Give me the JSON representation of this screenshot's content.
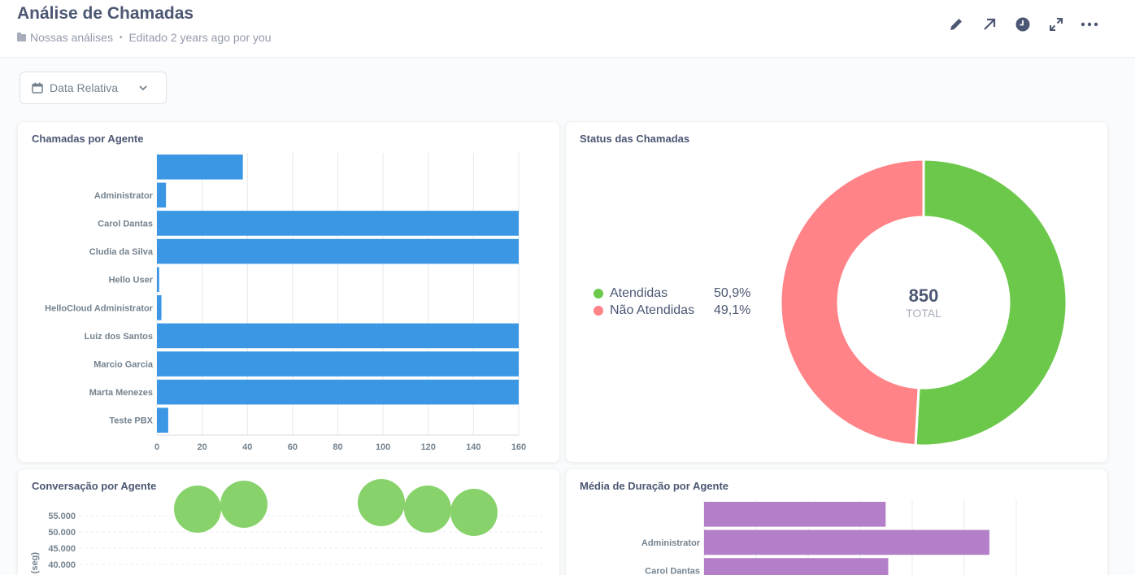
{
  "header": {
    "title": "Análise de Chamadas",
    "collection": "Nossas análises",
    "separator": "•",
    "edited": "Editado 2 years ago por you"
  },
  "header_icons": [
    "pencil-icon",
    "arrow-up-right-icon",
    "clock-icon",
    "expand-icon",
    "more-icon"
  ],
  "filter": {
    "label": "Data Relativa",
    "icon": "calendar-icon"
  },
  "colors": {
    "blue": "#3b97e3",
    "green": "#6cc84a",
    "red": "#ff8387",
    "purple": "#b37fc8",
    "bubble": "#88d26b"
  },
  "chart_data": [
    {
      "type": "bar",
      "orientation": "horizontal",
      "title": "Chamadas por Agente",
      "categories": [
        "",
        "Administrator",
        "Carol Dantas",
        "Cludia da Silva",
        "Hello User",
        "HelloCloud Administrator",
        "Luiz dos Santos",
        "Marcio Garcia",
        "Marta Menezes",
        "Teste PBX"
      ],
      "values": [
        38,
        4,
        160,
        160,
        1,
        2,
        160,
        160,
        160,
        5
      ],
      "xlim": [
        0,
        160
      ],
      "xticks": [
        "0",
        "20",
        "40",
        "60",
        "80",
        "100",
        "120",
        "140",
        "160"
      ]
    },
    {
      "type": "pie",
      "title": "Status das Chamadas",
      "labels": [
        "Atendidas",
        "Não Atendidas"
      ],
      "percents": [
        "50,9%",
        "49,1%"
      ],
      "values": [
        50.9,
        49.1
      ],
      "total": "850",
      "total_label": "TOTAL"
    },
    {
      "type": "scatter",
      "title": "Conversação por Agente",
      "ylabel": "o (seg)",
      "yticks": [
        "55.000",
        "50.000",
        "45.000",
        "40.000"
      ],
      "points": [
        57000,
        58500,
        59000,
        57000,
        56000
      ]
    },
    {
      "type": "bar",
      "orientation": "horizontal",
      "title": "Média de Duração por Agente",
      "categories": [
        "",
        "Administrator",
        "Carol Dantas"
      ],
      "values": [
        70,
        110,
        71
      ]
    }
  ]
}
